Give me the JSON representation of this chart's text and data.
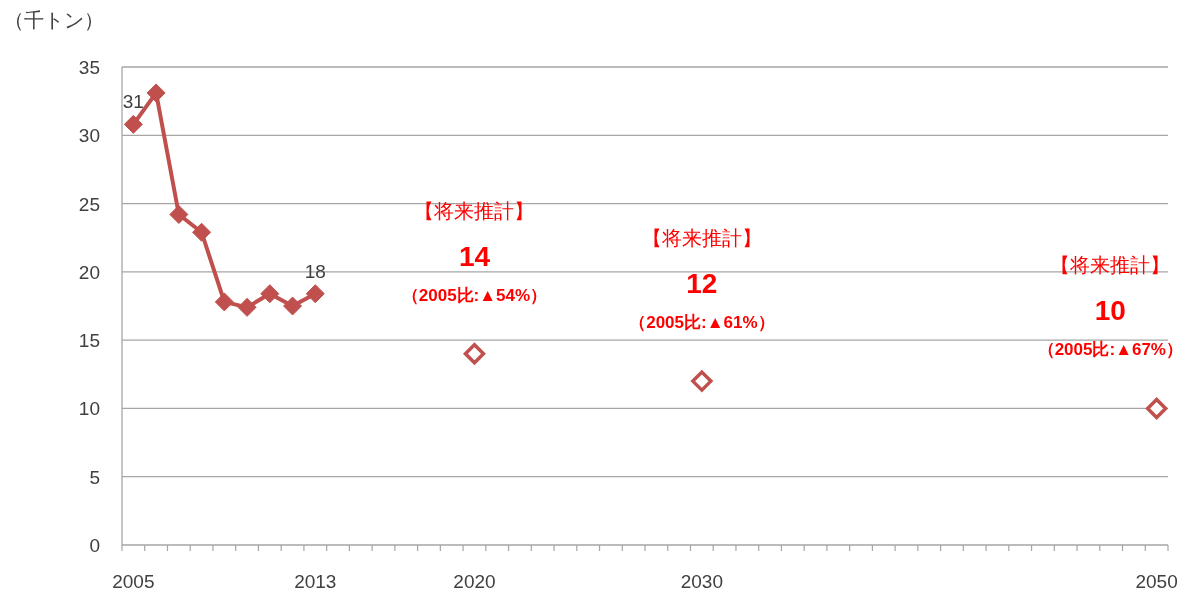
{
  "chart_data": {
    "type": "line",
    "ylabel": "（千トン）",
    "ylim": [
      0,
      35
    ],
    "yticks": [
      0,
      5,
      10,
      15,
      20,
      25,
      30,
      35
    ],
    "grid": "y",
    "marker": "diamond",
    "categories": [
      "2005",
      null,
      null,
      null,
      null,
      null,
      null,
      null,
      "2013",
      null,
      null,
      null,
      null,
      null,
      null,
      "2020",
      null,
      null,
      null,
      null,
      null,
      null,
      null,
      null,
      null,
      "2030",
      null,
      null,
      null,
      null,
      null,
      null,
      null,
      null,
      null,
      null,
      null,
      null,
      null,
      null,
      null,
      null,
      null,
      null,
      null,
      "2050"
    ],
    "series": [
      {
        "type": "line",
        "color": "#c0504d",
        "values": [
          30.8,
          33.1,
          24.2,
          22.9,
          17.8,
          17.4,
          18.4,
          17.5,
          18.4,
          null,
          null,
          null,
          null,
          null,
          null,
          null,
          null,
          null,
          null,
          null,
          null,
          null,
          null,
          null,
          null,
          null,
          null,
          null,
          null,
          null,
          null,
          null,
          null,
          null,
          null,
          null,
          null,
          null,
          null,
          null,
          null,
          null,
          null,
          null,
          null,
          null
        ],
        "value_labels": [
          "31",
          null,
          null,
          null,
          null,
          null,
          null,
          null,
          "18",
          null,
          null,
          null,
          null,
          null,
          null,
          null,
          null,
          null,
          null,
          null,
          null,
          null,
          null,
          null,
          null,
          null,
          null,
          null,
          null,
          null,
          null,
          null,
          null,
          null,
          null,
          null,
          null,
          null,
          null,
          null,
          null,
          null,
          null,
          null,
          null,
          null
        ]
      },
      {
        "type": "scatter",
        "color": "#c0504d",
        "values": [
          null,
          null,
          null,
          null,
          null,
          null,
          null,
          null,
          null,
          null,
          null,
          null,
          null,
          null,
          null,
          14,
          null,
          null,
          null,
          null,
          null,
          null,
          null,
          null,
          null,
          12,
          null,
          null,
          null,
          null,
          null,
          null,
          null,
          null,
          null,
          null,
          null,
          null,
          null,
          null,
          null,
          null,
          null,
          null,
          null,
          10
        ],
        "value_labels": [
          null,
          null,
          null,
          null,
          null,
          null,
          null,
          null,
          null,
          null,
          null,
          null,
          null,
          null,
          null,
          "14",
          null,
          null,
          null,
          null,
          null,
          null,
          null,
          null,
          null,
          "12",
          null,
          null,
          null,
          null,
          null,
          null,
          null,
          null,
          null,
          null,
          null,
          null,
          null,
          null,
          null,
          null,
          null,
          null,
          null,
          "10"
        ]
      }
    ],
    "annotations": [
      "【将来推計】",
      {
        "text": "（2005比:▲54%）",
        "x": "2020",
        "y": 14
      },
      "【将来推計】",
      {
        "text": "（2005比:▲61%）",
        "x": "2030",
        "y": 12
      },
      "【将来推計】",
      {
        "text": "（2005比:▲67%）",
        "x": "2050",
        "y": 10
      }
    ]
  }
}
